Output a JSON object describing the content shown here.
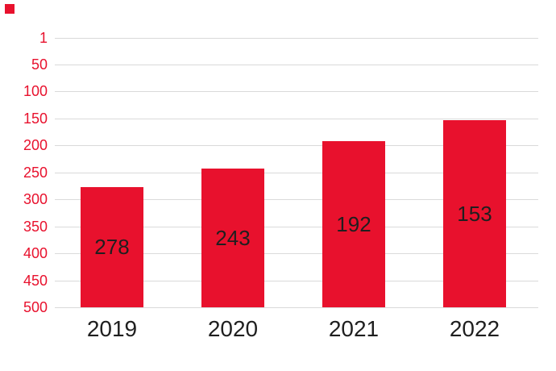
{
  "chart_data": {
    "type": "bar",
    "title": "",
    "categories": [
      "2019",
      "2020",
      "2021",
      "2022"
    ],
    "values": [
      278,
      243,
      192,
      153
    ],
    "value_labels": [
      "278",
      "243",
      "192",
      "153"
    ],
    "xlabel": "",
    "ylabel": "",
    "yticks": [
      1,
      50,
      100,
      150,
      200,
      250,
      300,
      350,
      400,
      450,
      500
    ],
    "ytick_labels": [
      "1",
      "50",
      "100",
      "150",
      "200",
      "250",
      "300",
      "350",
      "400",
      "450",
      "500"
    ],
    "ylim": [
      1,
      500
    ],
    "y_axis_inverted": true,
    "grid": "horizontal",
    "legend": "none",
    "colors": {
      "bar": "#e8112d",
      "ytick_label": "#e8112d",
      "gridline": "#dadada",
      "value_label": "#1f1f1f",
      "xtick_label": "#1f1f1f",
      "background": "#ffffff",
      "corner_mark": "#e8112d"
    }
  }
}
